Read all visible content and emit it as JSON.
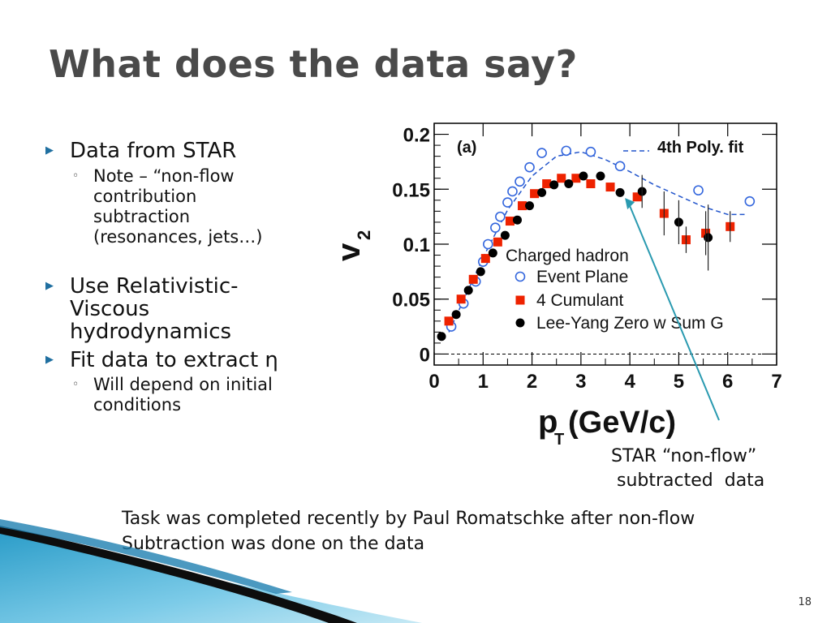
{
  "slide": {
    "title": "What does the data say?",
    "bullets": [
      {
        "text": "Data from STAR",
        "sub": "Note – “non-flow contribution subtraction (resonances, jets…)"
      },
      {
        "text": "Use Relativistic-Viscous hydrodynamics"
      },
      {
        "text": "Fit data to extract η",
        "sub": "Will depend on initial conditions"
      }
    ],
    "note_lines": [
      "Task was completed recently by Paul Romatschke after non-flow",
      "Subtraction was done on the data"
    ],
    "caption_lines": [
      "STAR “non-flow”",
      " subtracted  data"
    ],
    "page_number": "18"
  },
  "chart_data": {
    "type": "scatter",
    "panel_label": "(a)",
    "xlabel": "p",
    "xlabel_sub": "T",
    "xlabel_unit": " (GeV/c)",
    "ylabel": "v",
    "ylabel_sub": "2",
    "xlim": [
      0,
      7
    ],
    "ylim": [
      -0.01,
      0.21
    ],
    "xticks": [
      0,
      1,
      2,
      3,
      4,
      5,
      6,
      7
    ],
    "yticks": [
      {
        "value": 0,
        "label": "0"
      },
      {
        "value": 0.05,
        "label": "0.05"
      },
      {
        "value": 0.1,
        "label": "0.1"
      },
      {
        "value": 0.15,
        "label": "0.15"
      },
      {
        "value": 0.2,
        "label": "0.2"
      }
    ],
    "legend_title": "Charged hadron",
    "series": [
      {
        "name": "Event Plane",
        "marker": "open-circle",
        "color": "#3366dd",
        "x": [
          0.35,
          0.6,
          0.85,
          1.0,
          1.1,
          1.25,
          1.35,
          1.5,
          1.6,
          1.75,
          1.95,
          2.2,
          2.7,
          3.2,
          3.8,
          5.4,
          6.45
        ],
        "y": [
          0.025,
          0.046,
          0.066,
          0.084,
          0.1,
          0.115,
          0.125,
          0.138,
          0.148,
          0.157,
          0.17,
          0.183,
          0.185,
          0.184,
          0.171,
          0.149,
          0.139
        ]
      },
      {
        "name": "4 Cumulant",
        "marker": "filled-square",
        "color": "#ee2200",
        "x": [
          0.3,
          0.55,
          0.8,
          1.05,
          1.3,
          1.55,
          1.8,
          2.05,
          2.3,
          2.6,
          2.9,
          3.2,
          3.6,
          4.15,
          4.7,
          5.15,
          5.55,
          6.05
        ],
        "y": [
          0.03,
          0.05,
          0.068,
          0.087,
          0.102,
          0.121,
          0.135,
          0.146,
          0.155,
          0.16,
          0.16,
          0.155,
          0.152,
          0.143,
          0.128,
          0.104,
          0.11,
          0.116
        ]
      },
      {
        "name": "Lee-Yang Zero w Sum G",
        "marker": "filled-circle",
        "color": "#000000",
        "x": [
          0.15,
          0.45,
          0.7,
          0.95,
          1.2,
          1.45,
          1.7,
          1.95,
          2.2,
          2.45,
          2.75,
          3.05,
          3.4,
          3.8,
          4.25,
          5.0,
          5.6
        ],
        "y": [
          0.016,
          0.036,
          0.058,
          0.075,
          0.092,
          0.108,
          0.122,
          0.135,
          0.147,
          0.154,
          0.155,
          0.162,
          0.162,
          0.147,
          0.148,
          0.12,
          0.106
        ]
      }
    ],
    "fit": {
      "name": "4th Poly. fit",
      "x": [
        0.3,
        1.0,
        1.5,
        2.0,
        2.5,
        3.0,
        3.5,
        4.0,
        4.5,
        5.0,
        5.5,
        6.0,
        6.4
      ],
      "y": [
        0.02,
        0.088,
        0.131,
        0.162,
        0.18,
        0.184,
        0.177,
        0.166,
        0.154,
        0.144,
        0.134,
        0.127,
        0.127
      ]
    },
    "reference_line": {
      "y": 0
    },
    "arrow_target": {
      "x": 3.9,
      "y": 0.142
    }
  }
}
